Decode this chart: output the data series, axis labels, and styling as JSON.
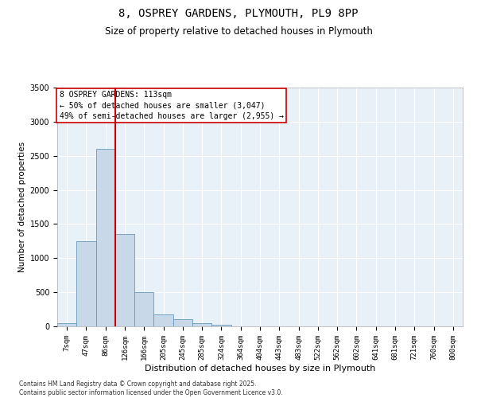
{
  "title_line1": "8, OSPREY GARDENS, PLYMOUTH, PL9 8PP",
  "title_line2": "Size of property relative to detached houses in Plymouth",
  "xlabel": "Distribution of detached houses by size in Plymouth",
  "ylabel": "Number of detached properties",
  "categories": [
    "7sqm",
    "47sqm",
    "86sqm",
    "126sqm",
    "166sqm",
    "205sqm",
    "245sqm",
    "285sqm",
    "324sqm",
    "364sqm",
    "404sqm",
    "443sqm",
    "483sqm",
    "522sqm",
    "562sqm",
    "602sqm",
    "641sqm",
    "681sqm",
    "721sqm",
    "760sqm",
    "800sqm"
  ],
  "values": [
    50,
    1250,
    2600,
    1350,
    500,
    175,
    100,
    50,
    20,
    5,
    2,
    0,
    0,
    0,
    0,
    0,
    0,
    0,
    0,
    0,
    0
  ],
  "bar_color": "#c8d8e8",
  "bar_edge_color": "#6699bb",
  "vline_color": "#cc0000",
  "vline_x": 2.5,
  "ylim": [
    0,
    3500
  ],
  "yticks": [
    0,
    500,
    1000,
    1500,
    2000,
    2500,
    3000,
    3500
  ],
  "annotation_title": "8 OSPREY GARDENS: 113sqm",
  "annotation_line1": "← 50% of detached houses are smaller (3,047)",
  "annotation_line2": "49% of semi-detached houses are larger (2,955) →",
  "annotation_box_color": "#ffffff",
  "annotation_box_edge": "#cc0000",
  "background_color": "#e8f0f8",
  "grid_color": "#ffffff",
  "footer_line1": "Contains HM Land Registry data © Crown copyright and database right 2025.",
  "footer_line2": "Contains public sector information licensed under the Open Government Licence v3.0.",
  "fig_width": 6.0,
  "fig_height": 5.0,
  "dpi": 100
}
